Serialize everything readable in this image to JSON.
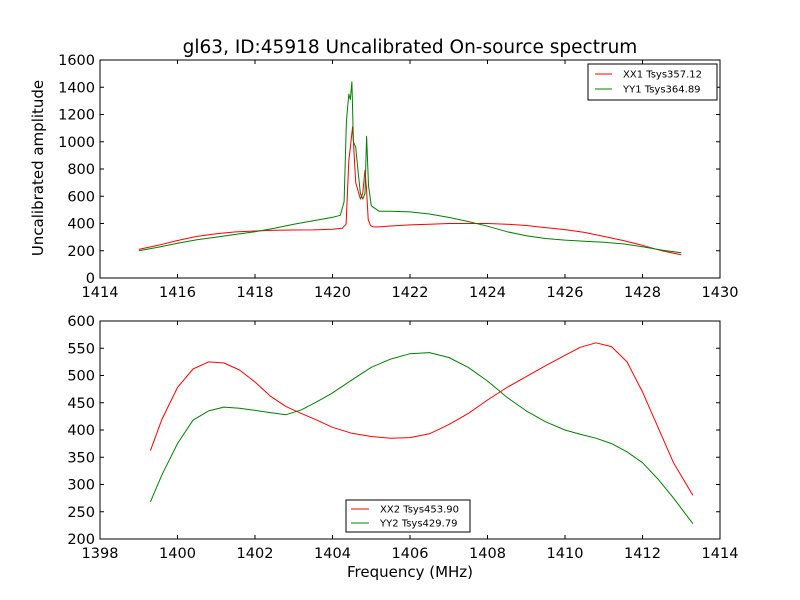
{
  "colors": {
    "red": "#ff0000",
    "green": "#008000",
    "background": "#ffffff",
    "axes": "#000000"
  },
  "chart_data": [
    {
      "type": "line",
      "title": "gl63, ID:45918 Uncalibrated On-source spectrum",
      "xlabel": "",
      "ylabel": "Uncalibrated amplitude",
      "xlim": [
        1414,
        1430
      ],
      "ylim": [
        0,
        1600
      ],
      "xticks": [
        "1414",
        "1416",
        "1418",
        "1420",
        "1422",
        "1424",
        "1426",
        "1428",
        "1430"
      ],
      "yticks": [
        "0",
        "200",
        "400",
        "600",
        "800",
        "1000",
        "1200",
        "1400",
        "1600"
      ],
      "grid": false,
      "legend_position": "top-right",
      "series": [
        {
          "name": "XX1 Tsys357.12",
          "color": "#ff0000",
          "x": [
            1415.0,
            1415.5,
            1416.0,
            1416.5,
            1417.0,
            1417.5,
            1418.0,
            1418.5,
            1419.0,
            1419.5,
            1420.0,
            1420.25,
            1420.35,
            1420.42,
            1420.48,
            1420.52,
            1420.56,
            1420.6,
            1420.66,
            1420.72,
            1420.78,
            1420.84,
            1420.88,
            1420.92,
            1420.98,
            1421.05,
            1421.2,
            1421.5,
            1422.0,
            1422.5,
            1423.0,
            1423.5,
            1424.0,
            1424.5,
            1425.0,
            1425.5,
            1426.0,
            1426.5,
            1427.0,
            1427.5,
            1428.0,
            1428.5,
            1429.0
          ],
          "y": [
            210,
            240,
            275,
            305,
            325,
            338,
            345,
            350,
            352,
            353,
            358,
            365,
            395,
            860,
            1010,
            1110,
            900,
            700,
            640,
            580,
            620,
            790,
            640,
            430,
            385,
            375,
            375,
            382,
            390,
            395,
            400,
            400,
            400,
            395,
            385,
            370,
            355,
            335,
            305,
            275,
            240,
            200,
            170
          ]
        },
        {
          "name": "YY1 Tsys364.89",
          "color": "#008000",
          "x": [
            1415.0,
            1415.5,
            1416.0,
            1416.5,
            1417.0,
            1417.5,
            1418.0,
            1418.5,
            1419.0,
            1419.5,
            1420.0,
            1420.2,
            1420.3,
            1420.36,
            1420.42,
            1420.46,
            1420.5,
            1420.54,
            1420.6,
            1420.66,
            1420.72,
            1420.78,
            1420.84,
            1420.88,
            1420.93,
            1421.0,
            1421.2,
            1421.5,
            1422.0,
            1422.5,
            1423.0,
            1423.5,
            1424.0,
            1424.5,
            1425.0,
            1425.5,
            1426.0,
            1426.5,
            1427.0,
            1427.5,
            1428.0,
            1428.5,
            1429.0
          ],
          "y": [
            200,
            225,
            255,
            280,
            300,
            320,
            340,
            365,
            395,
            420,
            445,
            460,
            560,
            1150,
            1350,
            1310,
            1440,
            1000,
            960,
            780,
            620,
            580,
            620,
            1040,
            680,
            530,
            490,
            490,
            485,
            470,
            445,
            415,
            380,
            340,
            310,
            290,
            278,
            270,
            262,
            250,
            230,
            205,
            185
          ]
        }
      ]
    },
    {
      "type": "line",
      "title": "",
      "xlabel": "Frequency (MHz)",
      "ylabel": "",
      "xlim": [
        1398,
        1414
      ],
      "ylim": [
        200,
        600
      ],
      "xticks": [
        "1398",
        "1400",
        "1402",
        "1404",
        "1406",
        "1408",
        "1410",
        "1412",
        "1414"
      ],
      "yticks": [
        "200",
        "250",
        "300",
        "350",
        "400",
        "450",
        "500",
        "550",
        "600"
      ],
      "grid": false,
      "legend_position": "bottom-center",
      "series": [
        {
          "name": "XX2 Tsys453.90",
          "color": "#ff0000",
          "x": [
            1399.3,
            1399.6,
            1400.0,
            1400.4,
            1400.8,
            1401.2,
            1401.6,
            1402.0,
            1402.4,
            1402.8,
            1403.2,
            1403.6,
            1404.0,
            1404.5,
            1405.0,
            1405.5,
            1406.0,
            1406.5,
            1407.0,
            1407.5,
            1408.0,
            1408.5,
            1409.0,
            1409.5,
            1410.0,
            1410.4,
            1410.8,
            1411.2,
            1411.6,
            1412.0,
            1412.4,
            1412.8,
            1413.3
          ],
          "y": [
            362,
            420,
            478,
            512,
            525,
            523,
            510,
            488,
            462,
            443,
            430,
            418,
            405,
            394,
            388,
            385,
            386,
            393,
            410,
            430,
            455,
            478,
            498,
            518,
            537,
            552,
            560,
            553,
            525,
            470,
            405,
            340,
            280
          ]
        },
        {
          "name": "YY2 Tsys429.79",
          "color": "#008000",
          "x": [
            1399.3,
            1399.6,
            1400.0,
            1400.4,
            1400.8,
            1401.2,
            1401.6,
            1402.0,
            1402.4,
            1402.8,
            1403.2,
            1403.6,
            1404.0,
            1404.5,
            1405.0,
            1405.5,
            1406.0,
            1406.5,
            1407.0,
            1407.5,
            1408.0,
            1408.5,
            1409.0,
            1409.5,
            1410.0,
            1410.4,
            1410.8,
            1411.2,
            1411.6,
            1412.0,
            1412.4,
            1412.8,
            1413.3
          ],
          "y": [
            268,
            318,
            375,
            418,
            435,
            442,
            440,
            436,
            432,
            428,
            437,
            452,
            468,
            492,
            515,
            530,
            540,
            542,
            533,
            515,
            490,
            460,
            435,
            415,
            400,
            392,
            385,
            375,
            360,
            340,
            310,
            275,
            228
          ]
        }
      ]
    }
  ]
}
